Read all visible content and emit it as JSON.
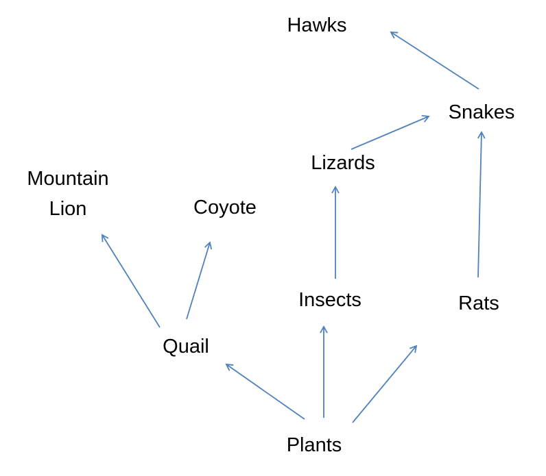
{
  "diagram": {
    "nodes": {
      "hawks": {
        "label": "Hawks"
      },
      "snakes": {
        "label": "Snakes"
      },
      "lizards": {
        "label": "Lizards"
      },
      "mountain_lion": {
        "label_line1": "Mountain",
        "label_line2": "Lion"
      },
      "coyote": {
        "label": "Coyote"
      },
      "insects": {
        "label": "Insects"
      },
      "rats": {
        "label": "Rats"
      },
      "quail": {
        "label": "Quail"
      },
      "plants": {
        "label": "Plants"
      }
    },
    "arrow_color": "#4F81BD",
    "edges": [
      {
        "from": "snakes",
        "to": "hawks"
      },
      {
        "from": "lizards",
        "to": "snakes"
      },
      {
        "from": "rats",
        "to": "snakes"
      },
      {
        "from": "insects",
        "to": "lizards"
      },
      {
        "from": "quail",
        "to": "mountain_lion"
      },
      {
        "from": "quail",
        "to": "coyote"
      },
      {
        "from": "plants",
        "to": "quail"
      },
      {
        "from": "plants",
        "to": "insects"
      },
      {
        "from": "plants",
        "to": "rats"
      }
    ]
  }
}
